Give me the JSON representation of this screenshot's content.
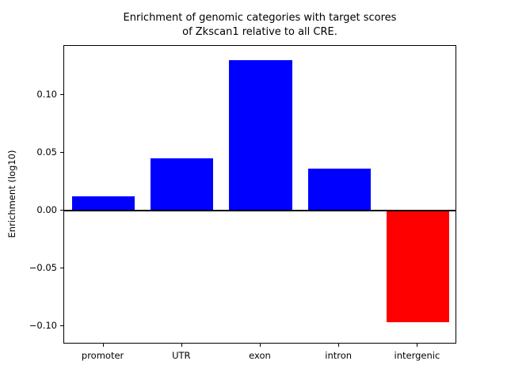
{
  "chart_data": {
    "type": "bar",
    "title": "Enrichment of genomic categories with target scores\nof Zkscan1 relative to all CRE.",
    "ylabel": "Enrichment (log10)",
    "xlabel": "",
    "categories": [
      "promoter",
      "UTR",
      "exon",
      "intron",
      "intergenic"
    ],
    "values": [
      0.012,
      0.045,
      0.13,
      0.036,
      -0.097
    ],
    "positive_color": "#0000ff",
    "negative_color": "#ff0000",
    "bar_colors": [
      "#0000ff",
      "#0000ff",
      "#0000ff",
      "#0000ff",
      "#ff0000"
    ],
    "ylim": [
      -0.116,
      0.1425
    ],
    "yticks": [
      -0.1,
      -0.05,
      0.0,
      0.05,
      0.1
    ],
    "ytick_labels": [
      "−0.10",
      "−0.05",
      "0.00",
      "0.05",
      "0.10"
    ],
    "zero_line": true,
    "grid": false,
    "legend": "none"
  }
}
